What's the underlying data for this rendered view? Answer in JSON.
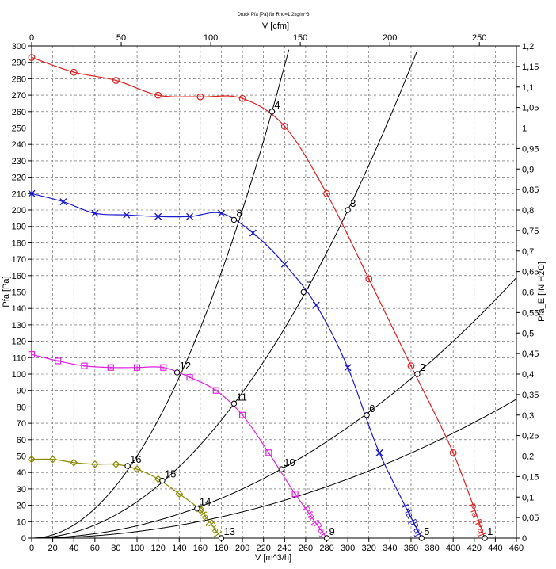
{
  "chart_data": {
    "type": "line",
    "title": "Druck Pfa [Pa] für Rho=1,2kg/m^3",
    "xlabel": "V [m^3/h]",
    "x2label": "V [cfm]",
    "ylabel": "Pfa [Pa]",
    "y2label": "Pfa_E [IN H2O]",
    "xlim": [
      0,
      460
    ],
    "ylim": [
      0,
      300
    ],
    "x2lim": [
      0,
      270.7
    ],
    "y2lim": [
      0,
      1.2
    ],
    "grid": true,
    "x_ticks": [
      "0",
      "20",
      "40",
      "60",
      "80",
      "100",
      "120",
      "140",
      "160",
      "180",
      "200",
      "220",
      "240",
      "260",
      "280",
      "300",
      "320",
      "340",
      "360",
      "380",
      "400",
      "420",
      "440",
      "460"
    ],
    "y_ticks": [
      "0",
      "10",
      "20",
      "30",
      "40",
      "50",
      "60",
      "70",
      "80",
      "90",
      "100",
      "110",
      "120",
      "130",
      "140",
      "150",
      "160",
      "170",
      "180",
      "190",
      "200",
      "210",
      "220",
      "230",
      "240",
      "250",
      "260",
      "270",
      "280",
      "290",
      "300"
    ],
    "x2_ticks": [
      "0",
      "50",
      "100",
      "150",
      "200",
      "250"
    ],
    "y2_ticks": [
      "0",
      "0,05",
      "0,1",
      "0,15",
      "0,2",
      "0,25",
      "0,3",
      "0,35",
      "0,4",
      "0,45",
      "0,5",
      "0,55",
      "0,6",
      "0,65",
      "0,7",
      "0,75",
      "0,8",
      "0,85",
      "0,9",
      "0,95",
      "1",
      "1,05",
      "1,1",
      "1,15",
      "1,2"
    ],
    "series": [
      {
        "name": "Pfa [Pa]",
        "color": "#e02020",
        "marker": "circle",
        "x": [
          0,
          40,
          80,
          120,
          160,
          200,
          240,
          280,
          320,
          360,
          400,
          430
        ],
        "y": [
          293,
          284,
          279,
          270,
          269,
          268,
          251,
          210,
          158,
          105,
          52,
          0
        ],
        "label": "Pfa [Pa]"
      },
      {
        "name": "Pfa [Pa]",
        "color": "#1a1acc",
        "marker": "cross",
        "x": [
          0,
          30,
          60,
          90,
          120,
          150,
          180,
          210,
          240,
          270,
          300,
          330,
          370
        ],
        "y": [
          210,
          205,
          198,
          197,
          196,
          196,
          198,
          186,
          167,
          142,
          104,
          52,
          0
        ],
        "label": "Pfa [Pa]"
      },
      {
        "name": "Pfa [Pa]",
        "color": "#e020e0",
        "marker": "square",
        "x": [
          0,
          25,
          50,
          75,
          100,
          125,
          150,
          175,
          200,
          225,
          250,
          280
        ],
        "y": [
          112,
          108,
          105,
          104,
          104,
          104,
          98,
          90,
          75,
          52,
          27,
          0
        ],
        "label": "Pfa [Pa]"
      },
      {
        "name": "Pfa [Pa]",
        "color": "#8a8a00",
        "marker": "diamond",
        "x": [
          0,
          20,
          40,
          60,
          80,
          100,
          120,
          140,
          160,
          180
        ],
        "y": [
          48,
          48,
          46,
          45,
          45,
          42,
          36,
          27,
          17,
          0
        ],
        "label": "Pfa [Pa]"
      }
    ],
    "system_curves": [
      {
        "name": "c4",
        "k": 0.005
      },
      {
        "name": "c3",
        "k": 0.00222
      },
      {
        "name": "c2",
        "k": 0.00075
      },
      {
        "name": "c1",
        "k": 0.0004
      }
    ],
    "operating_points": [
      {
        "label": "4",
        "x": 228,
        "y": 260
      },
      {
        "label": "3",
        "x": 300,
        "y": 200
      },
      {
        "label": "2",
        "x": 366,
        "y": 100
      },
      {
        "label": "1",
        "x": 430,
        "y": 0
      },
      {
        "label": "8",
        "x": 192,
        "y": 194
      },
      {
        "label": "7",
        "x": 258,
        "y": 150
      },
      {
        "label": "6",
        "x": 318,
        "y": 75
      },
      {
        "label": "5",
        "x": 370,
        "y": 0
      },
      {
        "label": "12",
        "x": 138,
        "y": 101
      },
      {
        "label": "11",
        "x": 192,
        "y": 82
      },
      {
        "label": "10",
        "x": 237,
        "y": 42
      },
      {
        "label": "9",
        "x": 280,
        "y": 0
      },
      {
        "label": "16",
        "x": 91,
        "y": 44
      },
      {
        "label": "15",
        "x": 124,
        "y": 35
      },
      {
        "label": "14",
        "x": 157,
        "y": 18
      },
      {
        "label": "13",
        "x": 180,
        "y": 0
      }
    ]
  }
}
